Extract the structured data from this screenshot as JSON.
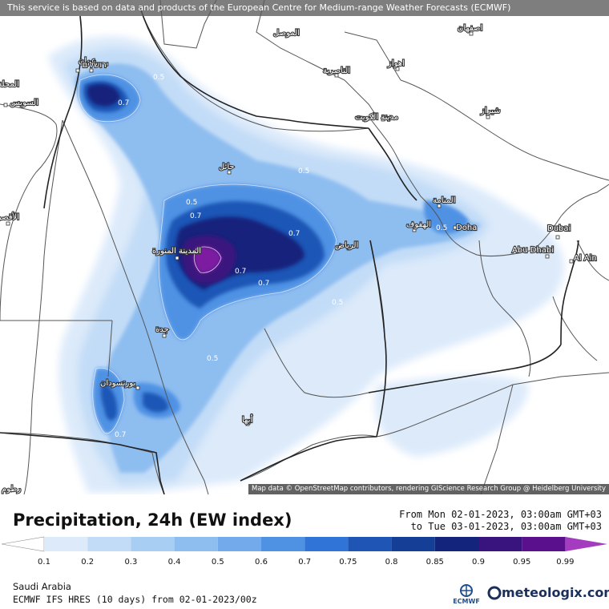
{
  "banner": "This service is based on data and products of the European Centre for Medium-range Weather Forecasts (ECMWF)",
  "attribution": "Map data © OpenStreetMap contributors, rendering GIScience Research Group @ Heidelberg University",
  "title": "Precipitation, 24h (EW index)",
  "time_from": "From Mon 02-01-2023, 03:00am GMT+03",
  "time_to": "to Tue 03-01-2023, 03:00am GMT+03",
  "region": "Saudi Arabia",
  "model": "ECMWF IFS HRES (10 days) from 02-01-2023/00z",
  "logos": {
    "ecmwf": "ECMWF",
    "meteologix": "meteologix.com"
  },
  "legend": {
    "ticks": [
      "0.1",
      "0.2",
      "0.3",
      "0.4",
      "0.5",
      "0.6",
      "0.7",
      "0.75",
      "0.8",
      "0.85",
      "0.9",
      "0.95",
      "0.99"
    ],
    "colors": [
      "#dceafa",
      "#c2dcf7",
      "#a8cef4",
      "#8ebdf0",
      "#72aaeb",
      "#4f92e4",
      "#2f74d6",
      "#1f56b6",
      "#153f97",
      "#12247c",
      "#3a147e",
      "#5a0f8c",
      "#7d1fa1",
      "#a43cc0"
    ]
  },
  "contour_labels": [
    "0.5",
    "0.7",
    "0.5",
    "0.7",
    "0.5",
    "0.7",
    "0.7",
    "0.5",
    "0.5",
    "0.7",
    "0.5",
    "0.7"
  ],
  "cities": {
    "amman": "عمان",
    "jerusalem": "ירושלים",
    "suez": "السويس",
    "mahalla": "المحلة",
    "luxor": "الأقصر",
    "mosul": "الموصل",
    "isfahan": "اصفهان",
    "nasiriyah": "الناصرية",
    "ahvaz": "اهواز",
    "kuwait": "مدينة الكويت",
    "shiraz": "شيراز",
    "hail": "حائل",
    "manama": "المنامة",
    "hofuf": "الهفوف",
    "doha": "Doha",
    "dubai": "Dubai",
    "abudhabi": "Abu Dhabi",
    "alain": "Al Ain",
    "riyadh": "الرياض",
    "madinah": "المدينة المنورة",
    "jeddah": "جدة",
    "portsudan": "بورتسودان",
    "abha": "أبها",
    "khartoum": "رطوم"
  }
}
